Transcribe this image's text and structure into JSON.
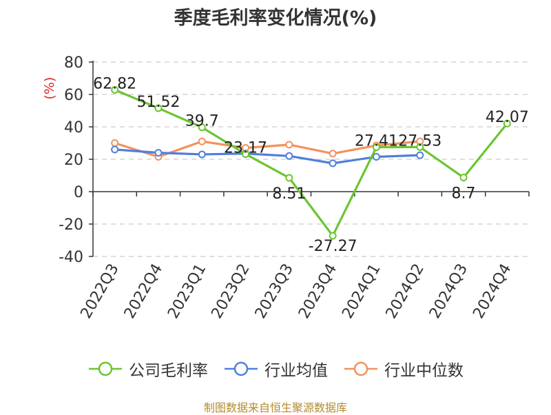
{
  "title": "季度毛利率变化情况(%)",
  "source": "制图数据来自恒生聚源数据库",
  "colors": {
    "company": "#6bc52f",
    "industry_avg": "#4f7fdb",
    "industry_median": "#f4905c",
    "axis": "#333333",
    "grid": "#cccccc",
    "ylabel": "#e02424"
  },
  "chart_data": {
    "type": "line",
    "title": "季度毛利率变化情况(%)",
    "ylabel": "(%)",
    "ylim": [
      -40,
      80
    ],
    "yticks": [
      "-40",
      "-20",
      "0",
      "20",
      "40",
      "60",
      "80"
    ],
    "grid": "horizontal dashed",
    "legend_position": "bottom",
    "categories": [
      "2022Q3",
      "2022Q4",
      "2023Q1",
      "2023Q2",
      "2023Q3",
      "2023Q4",
      "2024Q1",
      "2024Q2",
      "2024Q3",
      "2024Q4"
    ],
    "series": [
      {
        "name": "公司毛利率",
        "key": "company",
        "values": [
          62.82,
          51.52,
          39.7,
          23.17,
          8.51,
          -27.27,
          27.41,
          27.53,
          8.7,
          42.07
        ],
        "labels": [
          "62.82",
          "51.52",
          "39.7",
          "23.17",
          "8.51",
          "-27.27",
          "27.41",
          "27.53",
          "8.7",
          "42.07"
        ]
      },
      {
        "name": "行业均值",
        "key": "industry_avg",
        "values": [
          26,
          24,
          23,
          23.5,
          22,
          17.5,
          21.5,
          22.5,
          null,
          null
        ]
      },
      {
        "name": "行业中位数",
        "key": "industry_median",
        "values": [
          30,
          21.5,
          31,
          27,
          29,
          23.5,
          28.5,
          31,
          null,
          null
        ]
      }
    ]
  }
}
